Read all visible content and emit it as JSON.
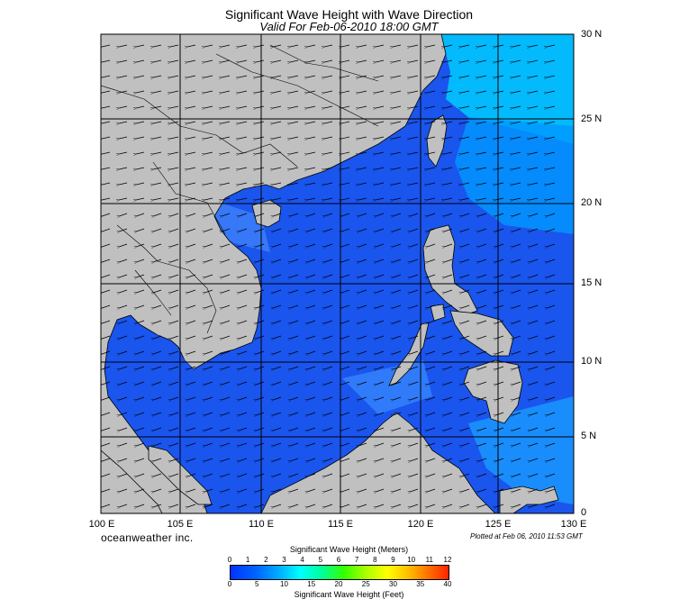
{
  "title": "Significant Wave Height with Wave Direction",
  "subtitle": "Valid For Feb-06-2010 18:00 GMT",
  "lat_labels": [
    "30 N",
    "25 N",
    "20 N",
    "15 N",
    "10 N",
    "5 N",
    "0"
  ],
  "lon_labels": [
    "100 E",
    "105 E",
    "110 E",
    "115 E",
    "120 E",
    "125 E",
    "130 E"
  ],
  "brand": "oceanweather inc.",
  "plotted": "Plotted at Feb 06, 2010 11:53 GMT",
  "colorbar": {
    "title_top": "Significant Wave Height (Meters)",
    "title_bottom": "Significant Wave Height (Feet)",
    "meters": [
      "0",
      "1",
      "2",
      "3",
      "4",
      "5",
      "6",
      "7",
      "8",
      "9",
      "10",
      "11",
      "12"
    ],
    "feet": [
      "0",
      "5",
      "10",
      "15",
      "20",
      "25",
      "30",
      "35",
      "40"
    ]
  },
  "colors": {
    "land": "#c0c0c0",
    "ocean_base": "#1a55ee",
    "high_wave": "#00ccff",
    "coast": "#000000"
  }
}
